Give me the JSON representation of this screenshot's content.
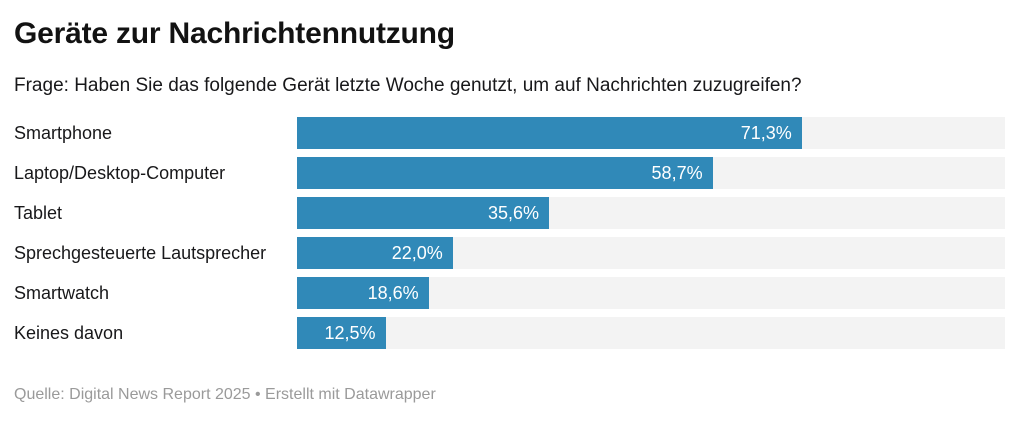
{
  "header": {
    "title": "Geräte zur Nachrichtennutzung",
    "subtitle": "Frage: Haben Sie das folgende Gerät letzte Woche genutzt, um auf Nachrichten zuzugreifen?"
  },
  "chart_data": {
    "type": "bar",
    "orientation": "horizontal",
    "title": "Geräte zur Nachrichtennutzung",
    "categories": [
      "Smartphone",
      "Laptop/Desktop-Computer",
      "Tablet",
      "Sprechgesteuerte Lautsprecher",
      "Smartwatch",
      "Keines davon"
    ],
    "values": [
      71.3,
      58.7,
      35.6,
      22.0,
      18.6,
      12.5
    ],
    "value_labels": [
      "71,3%",
      "58,7%",
      "35,6%",
      "22,0%",
      "18,6%",
      "12,5%"
    ],
    "xlim": [
      0,
      100
    ],
    "grid": false,
    "legend": "none",
    "bar_color": "#3089b8",
    "track_color": "#f3f3f3"
  },
  "footer": {
    "text": "Quelle: Digital News Report 2025 • Erstellt mit Datawrapper"
  }
}
